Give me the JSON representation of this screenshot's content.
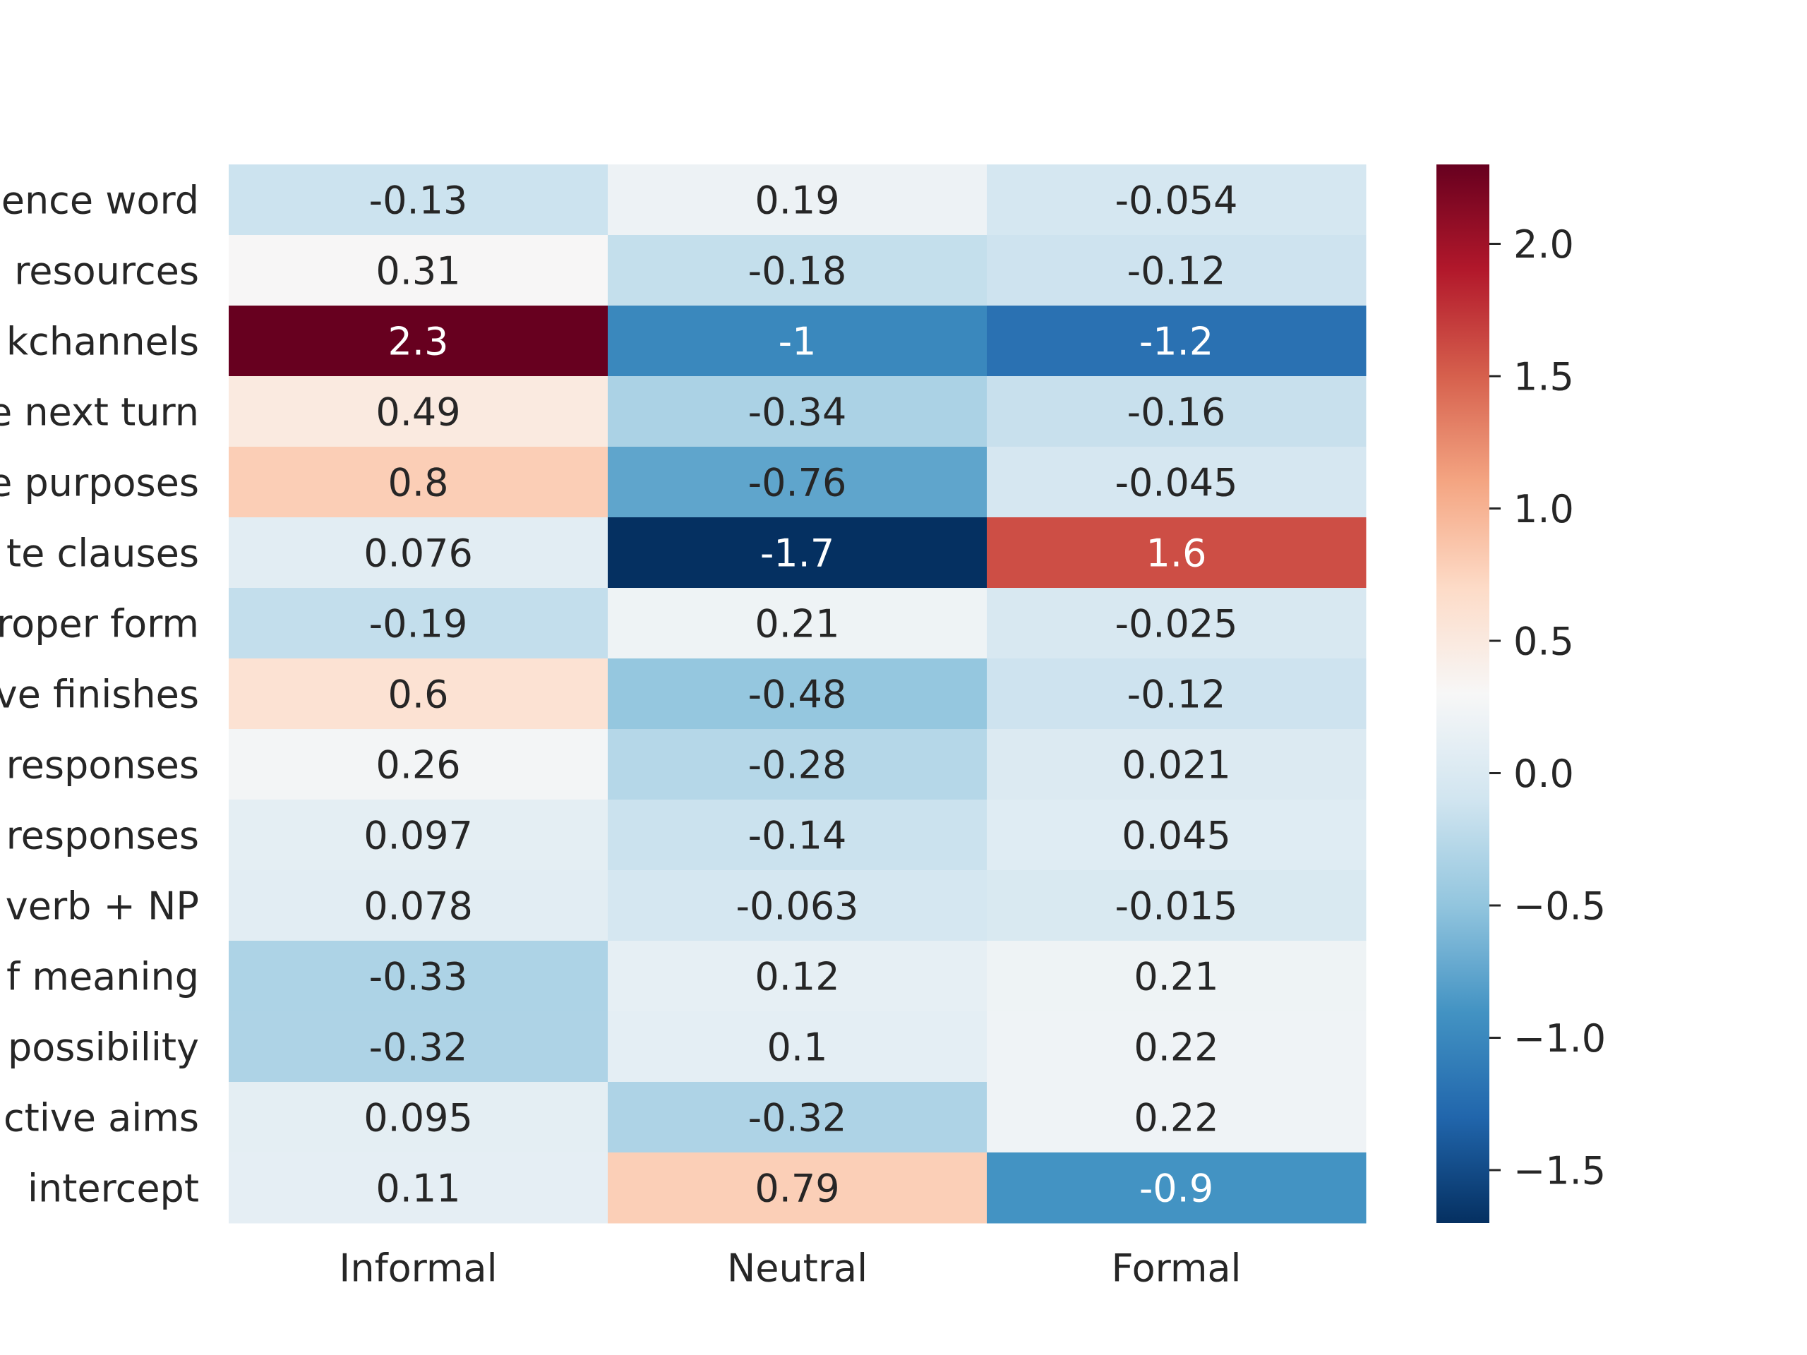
{
  "chart_data": {
    "type": "heatmap",
    "title": "",
    "xlabel": "",
    "ylabel": "",
    "columns": [
      "Informal",
      "Neutral",
      "Formal"
    ],
    "rows": [
      "ence word",
      "resources",
      "kchannels",
      "e next turn",
      "e purposes",
      "te clauses",
      "roper form",
      "ve finishes",
      "responses",
      "responses",
      "verb + NP",
      "f meaning",
      "possibility",
      "ctive aims",
      "intercept"
    ],
    "values": [
      [
        -0.13,
        0.19,
        -0.054
      ],
      [
        0.31,
        -0.18,
        -0.12
      ],
      [
        2.3,
        -1,
        -1.2
      ],
      [
        0.49,
        -0.34,
        -0.16
      ],
      [
        0.8,
        -0.76,
        -0.045
      ],
      [
        0.076,
        -1.7,
        1.6
      ],
      [
        -0.19,
        0.21,
        -0.025
      ],
      [
        0.6,
        -0.48,
        -0.12
      ],
      [
        0.26,
        -0.28,
        0.021
      ],
      [
        0.097,
        -0.14,
        0.045
      ],
      [
        0.078,
        -0.063,
        -0.015
      ],
      [
        -0.33,
        0.12,
        0.21
      ],
      [
        -0.32,
        0.1,
        0.22
      ],
      [
        0.095,
        -0.32,
        0.22
      ],
      [
        0.11,
        0.79,
        -0.9
      ]
    ],
    "cell_labels": [
      [
        "-0.13",
        "0.19",
        "-0.054"
      ],
      [
        "0.31",
        "-0.18",
        "-0.12"
      ],
      [
        "2.3",
        "-1",
        "-1.2"
      ],
      [
        "0.49",
        "-0.34",
        "-0.16"
      ],
      [
        "0.8",
        "-0.76",
        "-0.045"
      ],
      [
        "0.076",
        "-1.7",
        "1.6"
      ],
      [
        "-0.19",
        "0.21",
        "-0.025"
      ],
      [
        "0.6",
        "-0.48",
        "-0.12"
      ],
      [
        "0.26",
        "-0.28",
        "0.021"
      ],
      [
        "0.097",
        "-0.14",
        "0.045"
      ],
      [
        "0.078",
        "-0.063",
        "-0.015"
      ],
      [
        "-0.33",
        "0.12",
        "0.21"
      ],
      [
        "-0.32",
        "0.1",
        "0.22"
      ],
      [
        "0.095",
        "-0.32",
        "0.22"
      ],
      [
        "0.11",
        "0.79",
        "-0.9"
      ]
    ],
    "colormap": "RdBu_r",
    "vmin": -1.7,
    "vmax": 2.3,
    "colorbar": {
      "ticks": [
        2.0,
        1.5,
        1.0,
        0.5,
        0.0,
        -0.5,
        -1.0,
        -1.5
      ],
      "tick_labels": [
        "2.0",
        "1.5",
        "1.0",
        "0.5",
        "0.0",
        "−0.5",
        "−1.0",
        "−1.5"
      ]
    },
    "grid": false,
    "legend": "colorbar right",
    "colors": {
      "text_dark": "#262626",
      "text_light": "#ffffff"
    }
  }
}
